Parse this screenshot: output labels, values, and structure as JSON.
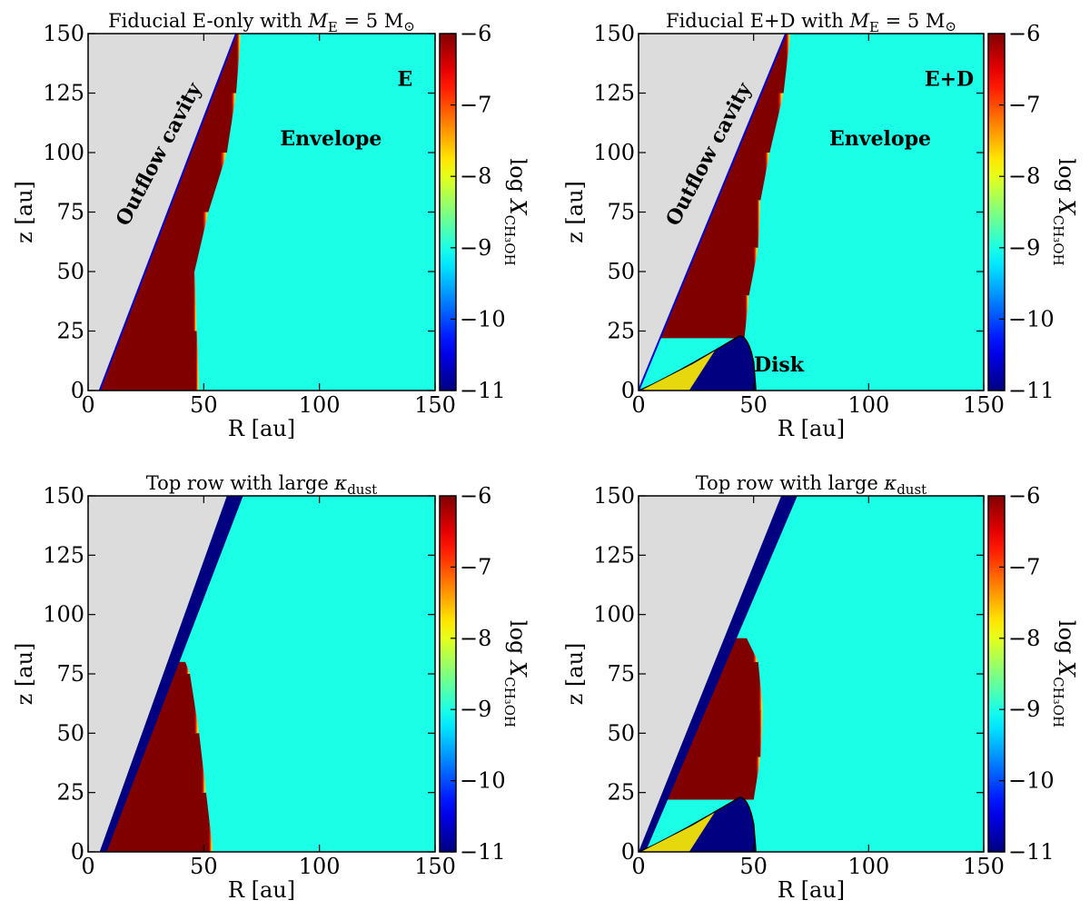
{
  "figure": {
    "colorbar_label": "log X",
    "colorbar_label_sub": "CH₃OH"
  },
  "chart_data": [
    {
      "type": "heatmap",
      "title": "Fiducial E-only with M_E = 5 M⊙",
      "title_parts": [
        "Fiducial E-only with ",
        "M",
        "E",
        " = 5 M",
        "⊙"
      ],
      "xlabel": "R [au]",
      "ylabel": "z [au]",
      "xlim": [
        0,
        150
      ],
      "ylim": [
        0,
        150
      ],
      "xticks": [
        0,
        50,
        100,
        150
      ],
      "yticks": [
        0,
        25,
        50,
        75,
        100,
        125,
        150
      ],
      "colorbar": {
        "label": "log X_CH3OH",
        "range": [
          -11,
          -6
        ],
        "ticks": [
          -6,
          -7,
          -8,
          -9,
          -10,
          -11
        ],
        "colormap": "jet"
      },
      "annotations": [
        "E",
        "Envelope",
        "Outflow cavity"
      ],
      "regions": {
        "outflow_cavity": {
          "color": "#dcdcdc",
          "wall_base_R": 5,
          "wall_top_R": 64
        },
        "envelope_log_X": -9.0,
        "hot_corino_log_X": -6.0,
        "sublimation_front_R": [
          [
            0,
            46
          ],
          [
            25,
            45
          ],
          [
            50,
            44
          ],
          [
            75,
            50
          ],
          [
            100,
            58
          ],
          [
            125,
            62
          ],
          [
            150,
            64
          ]
        ],
        "disk": null
      }
    },
    {
      "type": "heatmap",
      "title": "Fiducial E+D with M_E = 5 M⊙",
      "title_parts": [
        "Fiducial E+D with ",
        "M",
        "E",
        " = 5 M",
        "⊙"
      ],
      "xlabel": "R [au]",
      "ylabel": "z [au]",
      "xlim": [
        0,
        150
      ],
      "ylim": [
        0,
        150
      ],
      "xticks": [
        0,
        50,
        100,
        150
      ],
      "yticks": [
        0,
        25,
        50,
        75,
        100,
        125,
        150
      ],
      "colorbar": {
        "label": "log X_CH3OH",
        "range": [
          -11,
          -6
        ],
        "ticks": [
          -6,
          -7,
          -8,
          -9,
          -10,
          -11
        ],
        "colormap": "jet"
      },
      "annotations": [
        "E+D",
        "Envelope",
        "Outflow cavity",
        "Disk"
      ],
      "regions": {
        "outflow_cavity": {
          "color": "#dcdcdc",
          "wall_base_R": 0,
          "wall_top_R": 64
        },
        "envelope_log_X": -9.0,
        "hot_corino_log_X": -6.0,
        "sublimation_front_R": [
          [
            22,
            44
          ],
          [
            40,
            46
          ],
          [
            60,
            50
          ],
          [
            80,
            51
          ],
          [
            100,
            55
          ],
          [
            125,
            61
          ],
          [
            150,
            64
          ]
        ],
        "disk": {
          "outer_R": 51,
          "peak_R": 44,
          "peak_z": 23,
          "interior_log_X": -11,
          "surface_log_X": -7.8
        }
      }
    },
    {
      "type": "heatmap",
      "title": "Top row with large κ_dust",
      "title_parts": [
        "Top row with large ",
        "κ",
        "dust",
        "",
        ""
      ],
      "xlabel": "R [au]",
      "ylabel": "z [au]",
      "xlim": [
        0,
        150
      ],
      "ylim": [
        0,
        150
      ],
      "xticks": [
        0,
        50,
        100,
        150
      ],
      "yticks": [
        0,
        25,
        50,
        75,
        100,
        125,
        150
      ],
      "colorbar": {
        "label": "log X_CH3OH",
        "range": [
          -11,
          -6
        ],
        "ticks": [
          -6,
          -7,
          -8,
          -9,
          -10,
          -11
        ],
        "colormap": "jet"
      },
      "annotations": [],
      "regions": {
        "outflow_cavity": {
          "color": "#dcdcdc",
          "wall_base_R": 5,
          "wall_top_R": 60,
          "depleted_wall_log_X": -11
        },
        "envelope_log_X": -9.0,
        "hot_corino_log_X": -6.0,
        "sublimation_front_R": [
          [
            0,
            52
          ],
          [
            25,
            49
          ],
          [
            50,
            46
          ],
          [
            75,
            42
          ],
          [
            80,
            40
          ]
        ],
        "disk": null
      }
    },
    {
      "type": "heatmap",
      "title": "Top row with large κ_dust",
      "title_parts": [
        "Top row with large ",
        "κ",
        "dust",
        "",
        ""
      ],
      "xlabel": "R [au]",
      "ylabel": "z [au]",
      "xlim": [
        0,
        150
      ],
      "ylim": [
        0,
        150
      ],
      "xticks": [
        0,
        50,
        100,
        150
      ],
      "yticks": [
        0,
        25,
        50,
        75,
        100,
        125,
        150
      ],
      "colorbar": {
        "label": "log X_CH3OH",
        "range": [
          -11,
          -6
        ],
        "ticks": [
          -6,
          -7,
          -8,
          -9,
          -10,
          -11
        ],
        "colormap": "jet"
      },
      "annotations": [],
      "regions": {
        "outflow_cavity": {
          "color": "#dcdcdc",
          "wall_base_R": 0,
          "wall_top_R": 62,
          "depleted_wall_log_X": -11
        },
        "envelope_log_X": -9.0,
        "hot_corino_log_X": -6.0,
        "sublimation_front_R": [
          [
            22,
            48
          ],
          [
            40,
            51
          ],
          [
            60,
            52
          ],
          [
            80,
            50
          ],
          [
            90,
            45
          ]
        ],
        "disk": {
          "outer_R": 51,
          "peak_R": 44,
          "peak_z": 23,
          "interior_log_X": -11,
          "surface_log_X": -7.8
        }
      }
    }
  ]
}
